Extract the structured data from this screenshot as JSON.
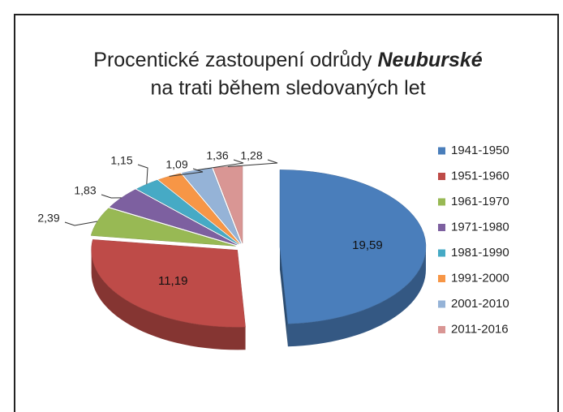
{
  "chart_data": {
    "type": "pie",
    "title": [
      "Procentické zastoupení odrůdy ",
      "Neuburské",
      "na  trati během sledovaných let"
    ],
    "categories": [
      "1941-1950",
      "1951-1960",
      "1961-1970",
      "1971-1980",
      "1981-1990",
      "1991-2000",
      "2001-2010",
      "2011-2016"
    ],
    "values": [
      19.59,
      11.19,
      2.39,
      1.83,
      1.15,
      1.09,
      1.36,
      1.28
    ],
    "value_labels": [
      "19,59",
      "11,19",
      "2,39",
      "1,83",
      "1,15",
      "1,09",
      "1,36",
      "1,28"
    ],
    "colors": [
      "#4a7ebb",
      "#be4b48",
      "#98b954",
      "#7d60a0",
      "#46aac5",
      "#f79646",
      "#95b3d7",
      "#d99694"
    ],
    "legend": "right"
  }
}
